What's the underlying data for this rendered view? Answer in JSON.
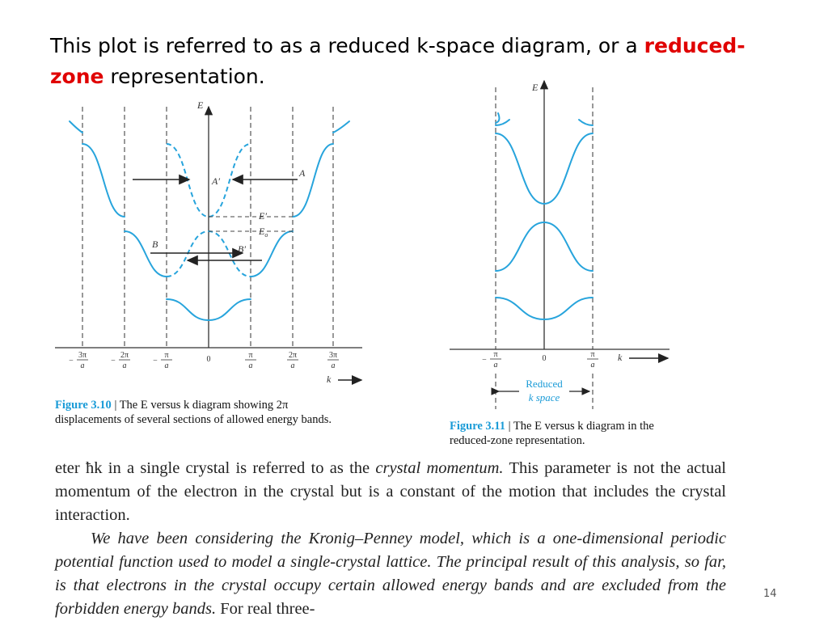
{
  "title": {
    "prefix": "This plot is referred to as a reduced k-space diagram, or a ",
    "highlight": "reduced-zone",
    "suffix": " representation."
  },
  "figure_3_10": {
    "axis_e": "E",
    "axis_k": "k",
    "tick_labels": [
      {
        "sign": "−",
        "num": "3π",
        "den": "a"
      },
      {
        "sign": "−",
        "num": "2π",
        "den": "a"
      },
      {
        "sign": "−",
        "num": "π",
        "den": "a"
      },
      {
        "sign": "",
        "num": "0",
        "den": ""
      },
      {
        "sign": "",
        "num": "π",
        "den": "a"
      },
      {
        "sign": "",
        "num": "2π",
        "den": "a"
      },
      {
        "sign": "",
        "num": "3π",
        "den": "a"
      }
    ],
    "point_labels": {
      "A": "A",
      "A_prime": "A′",
      "B": "B",
      "B_prime": "B′",
      "E_prime": "E′",
      "E_o": "E",
      "E_o_sub": "o"
    },
    "caption_label": "Figure 3.10",
    "caption_text": " | The E versus k diagram showing 2π displacements of several sections of allowed energy bands."
  },
  "figure_3_11": {
    "axis_e": "E",
    "axis_k": "k",
    "tick_labels": [
      {
        "sign": "−",
        "num": "π",
        "den": "a"
      },
      {
        "sign": "",
        "num": "0",
        "den": ""
      },
      {
        "sign": "",
        "num": "π",
        "den": "a"
      }
    ],
    "reduced_line1": "Reduced",
    "reduced_line2": "k space",
    "caption_label": "Figure 3.11",
    "caption_text": " | The E versus k diagram in the reduced-zone representation."
  },
  "body": {
    "p1_a": "eter ħk in a single crystal is referred to as the ",
    "p1_b": "crystal momentum.",
    "p1_c": " This parameter is not the actual momentum of the electron in the crystal but is a constant of the motion that includes the crystal interaction.",
    "p2": "We have been considering the Kronig–Penney model, which is a one-dimensional periodic potential function used to model a single-crystal lattice. The principal result of this analysis, so far, is that electrons in the crystal occupy certain allowed energy bands and are excluded from the forbidden energy bands.",
    "p2_tail": " For real three-"
  },
  "page_number": "14",
  "colors": {
    "curve": "#27a4dc",
    "axis": "#333333",
    "highlight": "#e00000"
  }
}
